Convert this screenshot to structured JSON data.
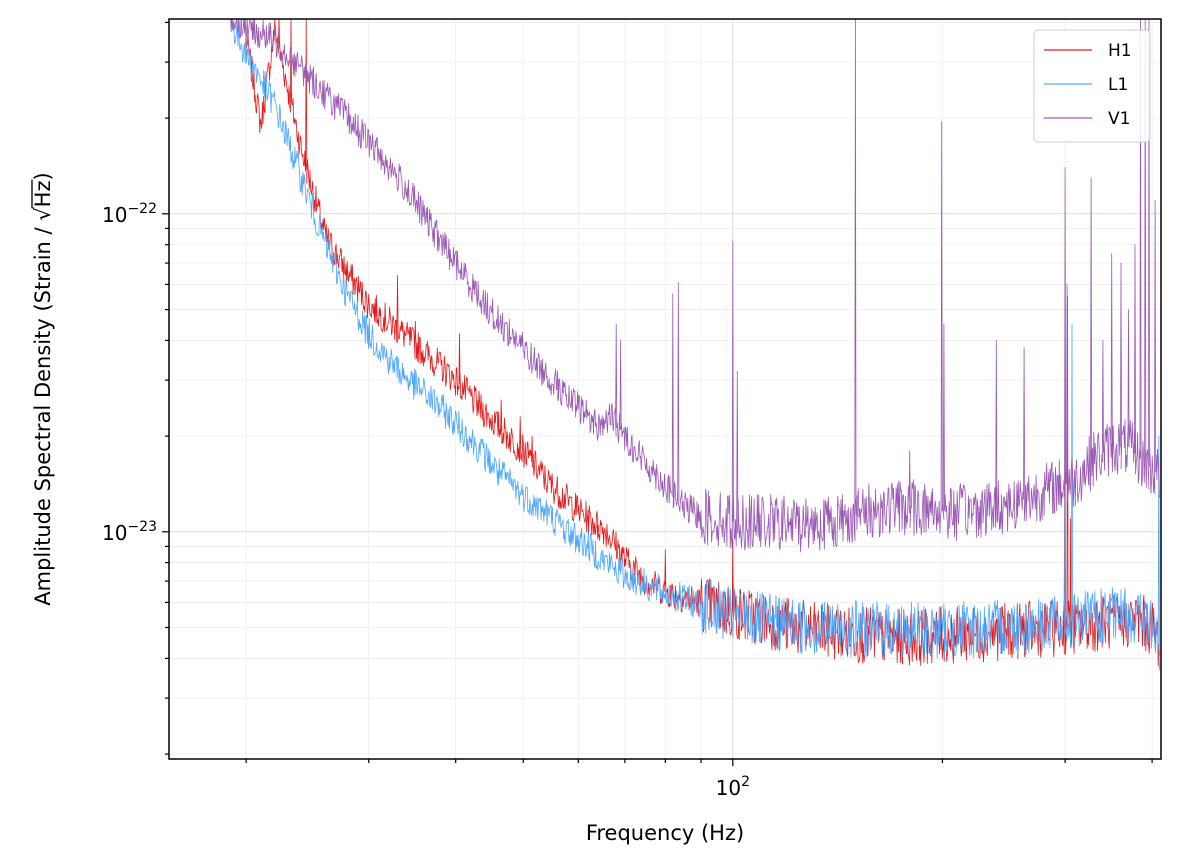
{
  "chart_data": {
    "type": "line",
    "title": "",
    "xlabel": "Frequency (Hz)",
    "ylabel_prefix": "Amplitude Spectral Density (Strain / ",
    "ylabel_unit": "Hz",
    "ylabel_suffix": ")",
    "x_scale": "log",
    "y_scale": "log",
    "xlim": [
      15.5,
      412
    ],
    "ylim": [
      1.93e-24,
      4.1e-22
    ],
    "grid": true,
    "legend_position": "top-right",
    "x_ticks": [
      {
        "value": 100,
        "base": "10",
        "exp": "2"
      }
    ],
    "y_ticks": [
      {
        "value": 1e-23,
        "base": "10",
        "exp": "−23"
      },
      {
        "value": 1e-22,
        "base": "10",
        "exp": "−22"
      }
    ],
    "series": [
      {
        "name": "H1",
        "color": "#e41a1c",
        "points": [
          [
            20,
            3.6e-22
          ],
          [
            21,
            1.9e-22
          ],
          [
            22,
            3.8e-22
          ],
          [
            24,
            1.6e-22
          ],
          [
            26,
            8.5e-23
          ],
          [
            28,
            6.5e-23
          ],
          [
            30,
            5.2e-23
          ],
          [
            32,
            4.6e-23
          ],
          [
            34,
            4.1e-23
          ],
          [
            37,
            3.5e-23
          ],
          [
            40,
            3e-23
          ],
          [
            43,
            2.5e-23
          ],
          [
            46,
            2.15e-23
          ],
          [
            50,
            1.8e-23
          ],
          [
            54,
            1.45e-23
          ],
          [
            58,
            1.25e-23
          ],
          [
            62,
            1.1e-23
          ],
          [
            66,
            1e-23
          ],
          [
            70,
            8.2e-24
          ],
          [
            75,
            7e-24
          ],
          [
            80,
            6.5e-24
          ],
          [
            90,
            6e-24
          ],
          [
            100,
            5.6e-24
          ],
          [
            115,
            5.2e-24
          ],
          [
            130,
            4.9e-24
          ],
          [
            150,
            4.75e-24
          ],
          [
            170,
            4.65e-24
          ],
          [
            200,
            4.7e-24
          ],
          [
            230,
            4.8e-24
          ],
          [
            260,
            4.9e-24
          ],
          [
            300,
            5e-24
          ],
          [
            340,
            5.2e-24
          ],
          [
            380,
            5.3e-24
          ],
          [
            400,
            5e-24
          ],
          [
            410,
            4.5e-24
          ]
        ],
        "peaks": [
          [
            22.3,
            4.2e-22
          ],
          [
            23.2,
            4.2e-22
          ],
          [
            24.4,
            4.2e-22
          ],
          [
            33.0,
            6.4e-23
          ],
          [
            35.0,
            4.6e-23
          ],
          [
            40.5,
            4.2e-23
          ],
          [
            46.5,
            2.6e-23
          ],
          [
            49.5,
            2.3e-23
          ],
          [
            51.5,
            2e-23
          ],
          [
            60.0,
            1.2e-23
          ],
          [
            64.0,
            9.5e-24
          ],
          [
            80.0,
            8.8e-24
          ],
          [
            100.0,
            9.5e-24
          ],
          [
            299.6,
            1.5e-23
          ],
          [
            302.4,
            5.5e-23
          ],
          [
            305.5,
            1.1e-23
          ]
        ]
      },
      {
        "name": "L1",
        "color": "#4da6ff",
        "points": [
          [
            19,
            4e-22
          ],
          [
            20,
            3.2e-22
          ],
          [
            22,
            2.2e-22
          ],
          [
            24,
            1.3e-22
          ],
          [
            26,
            8e-23
          ],
          [
            28,
            5.5e-23
          ],
          [
            30,
            4.2e-23
          ],
          [
            32,
            3.5e-23
          ],
          [
            34,
            3.05e-23
          ],
          [
            37,
            2.6e-23
          ],
          [
            40,
            2.2e-23
          ],
          [
            43,
            1.85e-23
          ],
          [
            46,
            1.55e-23
          ],
          [
            50,
            1.3e-23
          ],
          [
            54,
            1.15e-23
          ],
          [
            58,
            1e-23
          ],
          [
            62,
            9e-24
          ],
          [
            66,
            8e-24
          ],
          [
            70,
            7.3e-24
          ],
          [
            80,
            6.4e-24
          ],
          [
            90,
            5.9e-24
          ],
          [
            100,
            5.45e-24
          ],
          [
            115,
            5.15e-24
          ],
          [
            130,
            5e-24
          ],
          [
            150,
            4.95e-24
          ],
          [
            170,
            4.9e-24
          ],
          [
            200,
            4.9e-24
          ],
          [
            230,
            4.95e-24
          ],
          [
            260,
            5.05e-24
          ],
          [
            300,
            5.2e-24
          ],
          [
            340,
            5.4e-24
          ],
          [
            380,
            5.5e-24
          ],
          [
            400,
            5e-24
          ],
          [
            410,
            4.3e-24
          ]
        ],
        "peaks": [
          [
            46.0,
            1.4e-23
          ],
          [
            60.0,
            9e-24
          ],
          [
            65.0,
            8e-24
          ],
          [
            300.0,
            3.7e-23
          ],
          [
            307.0,
            4.5e-23
          ],
          [
            331.0,
            6.5e-24
          ],
          [
            409.0,
            2e-23
          ]
        ]
      },
      {
        "name": "V1",
        "color": "#9b59b6",
        "points": [
          [
            19,
            4.1e-22
          ],
          [
            22,
            3.5e-22
          ],
          [
            25,
            2.6e-22
          ],
          [
            28,
            2e-22
          ],
          [
            31,
            1.55e-22
          ],
          [
            34,
            1.2e-22
          ],
          [
            37,
            9e-23
          ],
          [
            40,
            7e-23
          ],
          [
            43,
            5.6e-23
          ],
          [
            46,
            4.6e-23
          ],
          [
            49,
            4e-23
          ],
          [
            52,
            3.4e-23
          ],
          [
            55,
            3e-23
          ],
          [
            58,
            2.6e-23
          ],
          [
            61,
            2.4e-23
          ],
          [
            64,
            2.15e-23
          ],
          [
            67,
            2.3e-23
          ],
          [
            70,
            2e-23
          ],
          [
            74,
            1.7e-23
          ],
          [
            78,
            1.5e-23
          ],
          [
            82,
            1.3e-23
          ],
          [
            86,
            1.18e-23
          ],
          [
            90,
            1.12e-23
          ],
          [
            100,
            1.08e-23
          ],
          [
            110,
            1.07e-23
          ],
          [
            125,
            1.06e-23
          ],
          [
            140,
            1.08e-23
          ],
          [
            155,
            1.15e-23
          ],
          [
            170,
            1.2e-23
          ],
          [
            190,
            1.18e-23
          ],
          [
            210,
            1.15e-23
          ],
          [
            230,
            1.18e-23
          ],
          [
            250,
            1.22e-23
          ],
          [
            270,
            1.3e-23
          ],
          [
            290,
            1.38e-23
          ],
          [
            310,
            1.45e-23
          ],
          [
            330,
            1.7e-23
          ],
          [
            350,
            1.85e-23
          ],
          [
            370,
            1.85e-23
          ],
          [
            390,
            1.65e-23
          ],
          [
            410,
            1.5e-23
          ]
        ],
        "peaks": [
          [
            56.0,
            3.2e-23
          ],
          [
            57.0,
            3e-23
          ],
          [
            68.0,
            4.5e-23
          ],
          [
            69.0,
            4e-23
          ],
          [
            82.0,
            5.6e-23
          ],
          [
            83.5,
            6.1e-23
          ],
          [
            100.0,
            8.2e-23
          ],
          [
            101.5,
            3.2e-23
          ],
          [
            150.0,
            4.1e-22
          ],
          [
            179.5,
            1.8e-23
          ],
          [
            199.5,
            1.95e-22
          ],
          [
            201.0,
            4.5e-23
          ],
          [
            239.0,
            4e-23
          ],
          [
            262.0,
            3.8e-23
          ],
          [
            300.0,
            1.4e-22
          ],
          [
            302.0,
            6e-23
          ],
          [
            327.0,
            1.3e-22
          ],
          [
            340.0,
            4e-23
          ],
          [
            350.0,
            7.5e-23
          ],
          [
            361.0,
            7e-23
          ],
          [
            370.0,
            5e-23
          ],
          [
            378.0,
            8e-23
          ],
          [
            385.0,
            4.1e-22
          ],
          [
            391.0,
            4.1e-22
          ],
          [
            396.0,
            4.1e-22
          ],
          [
            404.0,
            1.1e-22
          ],
          [
            410.0,
            1e-22
          ]
        ]
      }
    ]
  }
}
